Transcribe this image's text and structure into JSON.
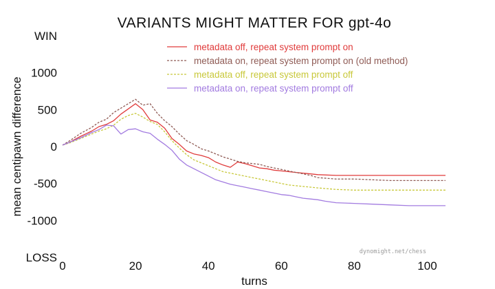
{
  "chart_data": {
    "type": "line",
    "title": "VARIANTS MIGHT MATTER FOR gpt-4o",
    "xlabel": "turns",
    "ylabel": "mean centipawn difference",
    "xlim": [
      0,
      105
    ],
    "ylim": [
      -1500,
      1500
    ],
    "xticks": [
      0,
      20,
      40,
      60,
      80,
      100
    ],
    "yticks": [
      {
        "value": 1500,
        "label": "WIN"
      },
      {
        "value": 1000,
        "label": "1000"
      },
      {
        "value": 500,
        "label": "500"
      },
      {
        "value": 0,
        "label": "0"
      },
      {
        "value": -500,
        "label": "-500"
      },
      {
        "value": -1000,
        "label": "-1000"
      },
      {
        "value": -1500,
        "label": "LOSS"
      }
    ],
    "grid": false,
    "legend_position": "top-right",
    "watermark": "dynomight.net/chess",
    "series": [
      {
        "name": "metadata off, repeat system prompt on",
        "color": "#e03a3a",
        "dash": "solid",
        "x": [
          0,
          2,
          5,
          8,
          10,
          12,
          14,
          16,
          18,
          20,
          22,
          24,
          26,
          28,
          30,
          32,
          34,
          36,
          38,
          40,
          42,
          44,
          46,
          48,
          50,
          52,
          54,
          56,
          58,
          60,
          62,
          64,
          66,
          68,
          70,
          75,
          80,
          85,
          90,
          95,
          100,
          105
        ],
        "y": [
          20,
          60,
          140,
          210,
          270,
          300,
          350,
          440,
          510,
          580,
          500,
          360,
          330,
          250,
          110,
          30,
          -60,
          -100,
          -120,
          -150,
          -210,
          -250,
          -280,
          -210,
          -230,
          -260,
          -290,
          -300,
          -320,
          -330,
          -340,
          -350,
          -360,
          -370,
          -380,
          -390,
          -390,
          -390,
          -390,
          -390,
          -390,
          -390
        ]
      },
      {
        "name": "metadata on, repeat system prompt on (old method)",
        "color": "#8f5b55",
        "dash": "dashed",
        "x": [
          0,
          2,
          5,
          8,
          10,
          12,
          14,
          16,
          18,
          20,
          22,
          24,
          26,
          28,
          30,
          32,
          34,
          36,
          38,
          40,
          42,
          44,
          46,
          48,
          50,
          52,
          54,
          56,
          58,
          60,
          62,
          64,
          66,
          68,
          70,
          75,
          80,
          85,
          90,
          95,
          100,
          105
        ],
        "y": [
          20,
          80,
          180,
          260,
          330,
          370,
          460,
          520,
          580,
          640,
          560,
          580,
          450,
          350,
          270,
          170,
          80,
          30,
          -30,
          -60,
          -100,
          -140,
          -170,
          -200,
          -220,
          -230,
          -240,
          -270,
          -290,
          -310,
          -330,
          -350,
          -370,
          -390,
          -420,
          -440,
          -440,
          -450,
          -460,
          -460,
          -460,
          -460
        ]
      },
      {
        "name": "metadata off, repeat system prompt off",
        "color": "#c8c83a",
        "dash": "dashed",
        "x": [
          0,
          2,
          5,
          8,
          10,
          12,
          14,
          16,
          18,
          20,
          22,
          24,
          26,
          28,
          30,
          32,
          34,
          36,
          38,
          40,
          42,
          44,
          46,
          48,
          50,
          52,
          54,
          56,
          58,
          60,
          62,
          64,
          66,
          68,
          70,
          75,
          80,
          85,
          90,
          95,
          100,
          105
        ],
        "y": [
          20,
          50,
          110,
          170,
          210,
          240,
          290,
          370,
          420,
          450,
          400,
          340,
          300,
          200,
          80,
          -20,
          -110,
          -180,
          -220,
          -260,
          -300,
          -340,
          -360,
          -380,
          -400,
          -420,
          -440,
          -460,
          -480,
          -500,
          -520,
          -530,
          -540,
          -550,
          -560,
          -580,
          -590,
          -590,
          -590,
          -590,
          -590,
          -590
        ]
      },
      {
        "name": "metadata on, repeat system prompt off",
        "color": "#a27be0",
        "dash": "solid",
        "x": [
          0,
          2,
          5,
          8,
          10,
          12,
          14,
          16,
          18,
          20,
          22,
          24,
          26,
          28,
          30,
          32,
          34,
          36,
          38,
          40,
          42,
          44,
          46,
          48,
          50,
          52,
          54,
          56,
          58,
          60,
          62,
          64,
          66,
          68,
          70,
          72,
          75,
          80,
          85,
          90,
          95,
          100,
          105
        ],
        "y": [
          20,
          60,
          120,
          190,
          230,
          290,
          280,
          170,
          230,
          240,
          200,
          180,
          100,
          30,
          -50,
          -170,
          -250,
          -300,
          -350,
          -400,
          -450,
          -480,
          -510,
          -530,
          -550,
          -570,
          -590,
          -610,
          -630,
          -650,
          -660,
          -680,
          -700,
          -710,
          -720,
          -740,
          -760,
          -770,
          -780,
          -790,
          -800,
          -800,
          -800
        ]
      }
    ]
  }
}
